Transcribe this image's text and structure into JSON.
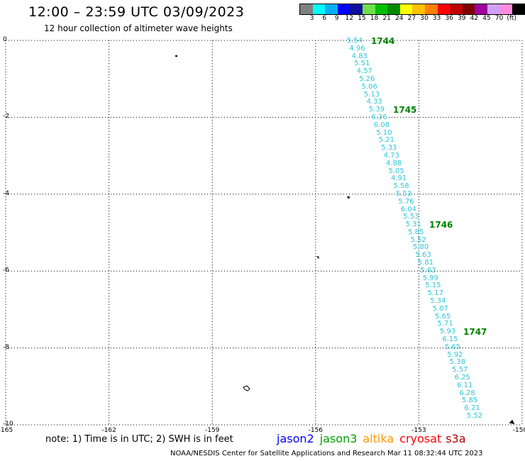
{
  "header": {
    "title": "12:00 – 23:59 UTC 03/09/2023",
    "subtitle": "12 hour collection of altimeter wave heights"
  },
  "legend": {
    "colors": [
      "#808080",
      "#00ffff",
      "#00b0f0",
      "#0000ff",
      "#0f0fa0",
      "#70e04a",
      "#00c000",
      "#008a00",
      "#ffff00",
      "#ffc000",
      "#ff7f00",
      "#ff0000",
      "#c00000",
      "#800000",
      "#a000a0",
      "#d0a0ff",
      "#ff8ce0",
      "#000000"
    ],
    "labels": [
      "3",
      "6",
      "9",
      "12",
      "15",
      "18",
      "21",
      "24",
      "27",
      "30",
      "33",
      "36",
      "39",
      "42",
      "45",
      "70",
      "(ft)"
    ]
  },
  "axes": {
    "y_ticks": [
      "0",
      "-2",
      "-4",
      "-6",
      "-8",
      "-10"
    ],
    "x_ticks": [
      "-165",
      "-162",
      "-159",
      "-156",
      "-153",
      "-150"
    ]
  },
  "track": {
    "color": "#2ec6d8",
    "values": [
      "5.54",
      "4.96",
      "4.83",
      "5.51",
      "4.57",
      "5.26",
      "5.06",
      "5.13",
      "4.33",
      "5.39",
      "6.36",
      "6.08",
      "5.10",
      "5.21",
      "5.33",
      "4.73",
      "4.88",
      "5.05",
      "4.91",
      "5.58",
      "5.53",
      "5.76",
      "6.04",
      "5.53",
      "5.31",
      "5.85",
      "5.52",
      "5.80",
      "5.63",
      "5.81",
      "5.63",
      "5.99",
      "5.15",
      "5.17",
      "5.34",
      "5.07",
      "5.65",
      "5.71",
      "5.93",
      "6.15",
      "5.65",
      "5.92",
      "5.38",
      "5.57",
      "6.25",
      "6.11",
      "6.28",
      "5.85",
      "6.21",
      "5.52"
    ]
  },
  "pass_times": [
    "1744",
    "1745",
    "1746",
    "1747"
  ],
  "note": "note:  1) Time is in UTC;  2) SWH is in feet",
  "satellites": [
    {
      "name": "jason2",
      "color": "#0000ff"
    },
    {
      "name": "jason3",
      "color": "#00a000"
    },
    {
      "name": "altika",
      "color": "#ff9900"
    },
    {
      "name": "cryosat",
      "color": "#ff0000"
    },
    {
      "name": "s3a",
      "color": "#b00000"
    }
  ],
  "footer": "NOAA/NESDIS Center for Satellite Applications and Research    Mar 11 08:32:44 UTC 2023"
}
